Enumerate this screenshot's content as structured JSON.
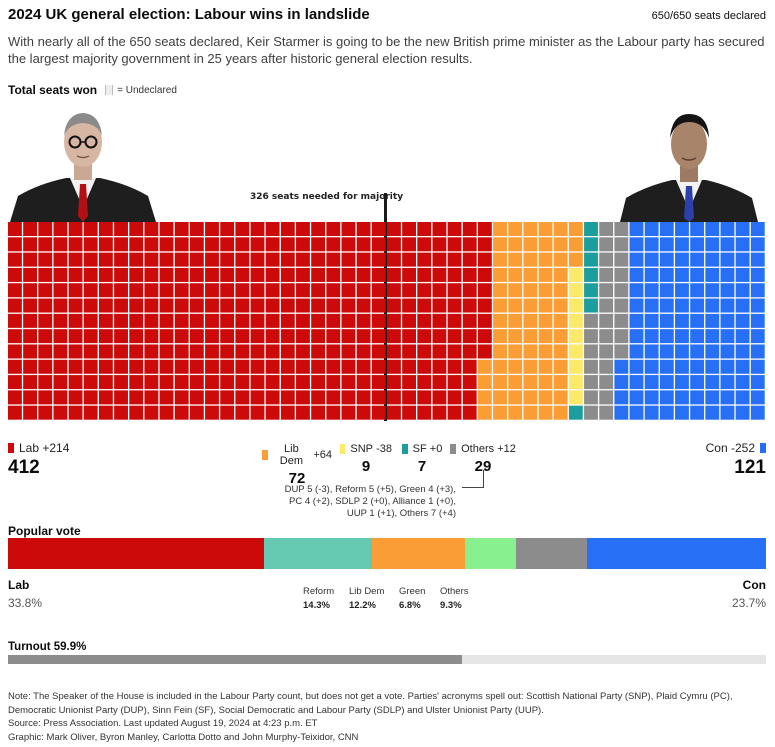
{
  "header": {
    "title": "2024 UK general election: Labour wins in landslide",
    "declared": "650/650 seats declared",
    "subtitle": "With nearly all of the 650 seats declared, Keir Starmer is going to be the new British prime minister as the Labour party has secured the largest majority government in 25 years after historic general election results."
  },
  "seats_section": {
    "heading": "Total seats won",
    "undeclared_label": "= Undeclared",
    "majority_label": "326 seats needed for majority"
  },
  "colors": {
    "lab": "#cc0a0a",
    "libdem": "#fa9d35",
    "snp": "#fbe96a",
    "sf": "#1c9e9e",
    "others": "#8c8c8c",
    "con": "#2770f5",
    "reform": "#65c8b1",
    "green": "#88f08c"
  },
  "chart_data": [
    {
      "type": "waffle",
      "total": 650,
      "majority": 326,
      "parties": [
        {
          "name": "Lab",
          "change": "+214",
          "seats": 412,
          "color": "#cc0a0a"
        },
        {
          "name": "Lib Dem",
          "change": "+64",
          "seats": 72,
          "color": "#fa9d35"
        },
        {
          "name": "SNP",
          "change": "-38",
          "seats": 9,
          "color": "#fbe96a"
        },
        {
          "name": "SF",
          "change": "+0",
          "seats": 7,
          "color": "#1c9e9e"
        },
        {
          "name": "Others",
          "change": "+12",
          "seats": 29,
          "color": "#8c8c8c"
        },
        {
          "name": "Con",
          "change": "-252",
          "seats": 121,
          "color": "#2770f5"
        }
      ],
      "others_detail": [
        "DUP 5 (-3), Reform 5 (+5), Green 4 (+3),",
        "PC 4 (+2), SDLP 2 (+0), Alliance 1 (+0),",
        "UUP 1 (+1), Others 7 (+4)"
      ]
    },
    {
      "type": "stacked-bar",
      "title": "Popular vote",
      "unit": "%",
      "segments": [
        {
          "name": "Lab",
          "value": 33.8,
          "label": "33.8%",
          "color": "#cc0a0a"
        },
        {
          "name": "Reform",
          "value": 14.3,
          "label": "14.3%",
          "color": "#65c8b1"
        },
        {
          "name": "Lib Dem",
          "value": 12.2,
          "label": "12.2%",
          "color": "#fa9d35"
        },
        {
          "name": "Green",
          "value": 6.8,
          "label": "6.8%",
          "color": "#88f08c"
        },
        {
          "name": "Others",
          "value": 9.3,
          "label": "9.3%",
          "color": "#8c8c8c"
        },
        {
          "name": "Con",
          "value": 23.7,
          "label": "23.7%",
          "color": "#2770f5"
        }
      ]
    }
  ],
  "turnout": {
    "label": "Turnout 59.9%",
    "value": 59.9
  },
  "notes": [
    "Note: The Speaker of the House is included in the Labour Party count, but does not get a vote. Parties' acronyms spell out: Scottish National Party (SNP), Plaid Cymru (PC), Democratic Unionist Party (DUP), Sinn Fein (SF), Social Democratic and Labour Party (SDLP) and Ulster Unionist Party (UUP).",
    "Source: Press Association. Last updated August 19, 2024 at 4:23 p.m. ET",
    "Graphic: Mark Oliver, Byron Manley, Carlotta Dotto and John Murphy-Teixidor, CNN"
  ]
}
